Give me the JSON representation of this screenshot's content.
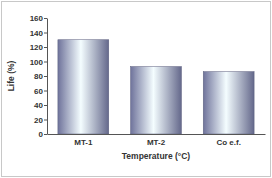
{
  "chart_data": {
    "type": "bar",
    "x_label": "Temperature (°C)",
    "y_label": "Life (%)",
    "categories": [
      "MT-1",
      "MT-2",
      "Co e.f."
    ],
    "values": [
      130,
      93,
      86
    ],
    "color": "#8a8fc0",
    "ylim": [
      0,
      160
    ],
    "yticks": [
      0,
      20,
      40,
      60,
      80,
      100,
      120,
      140,
      160
    ],
    "grid": false
  }
}
